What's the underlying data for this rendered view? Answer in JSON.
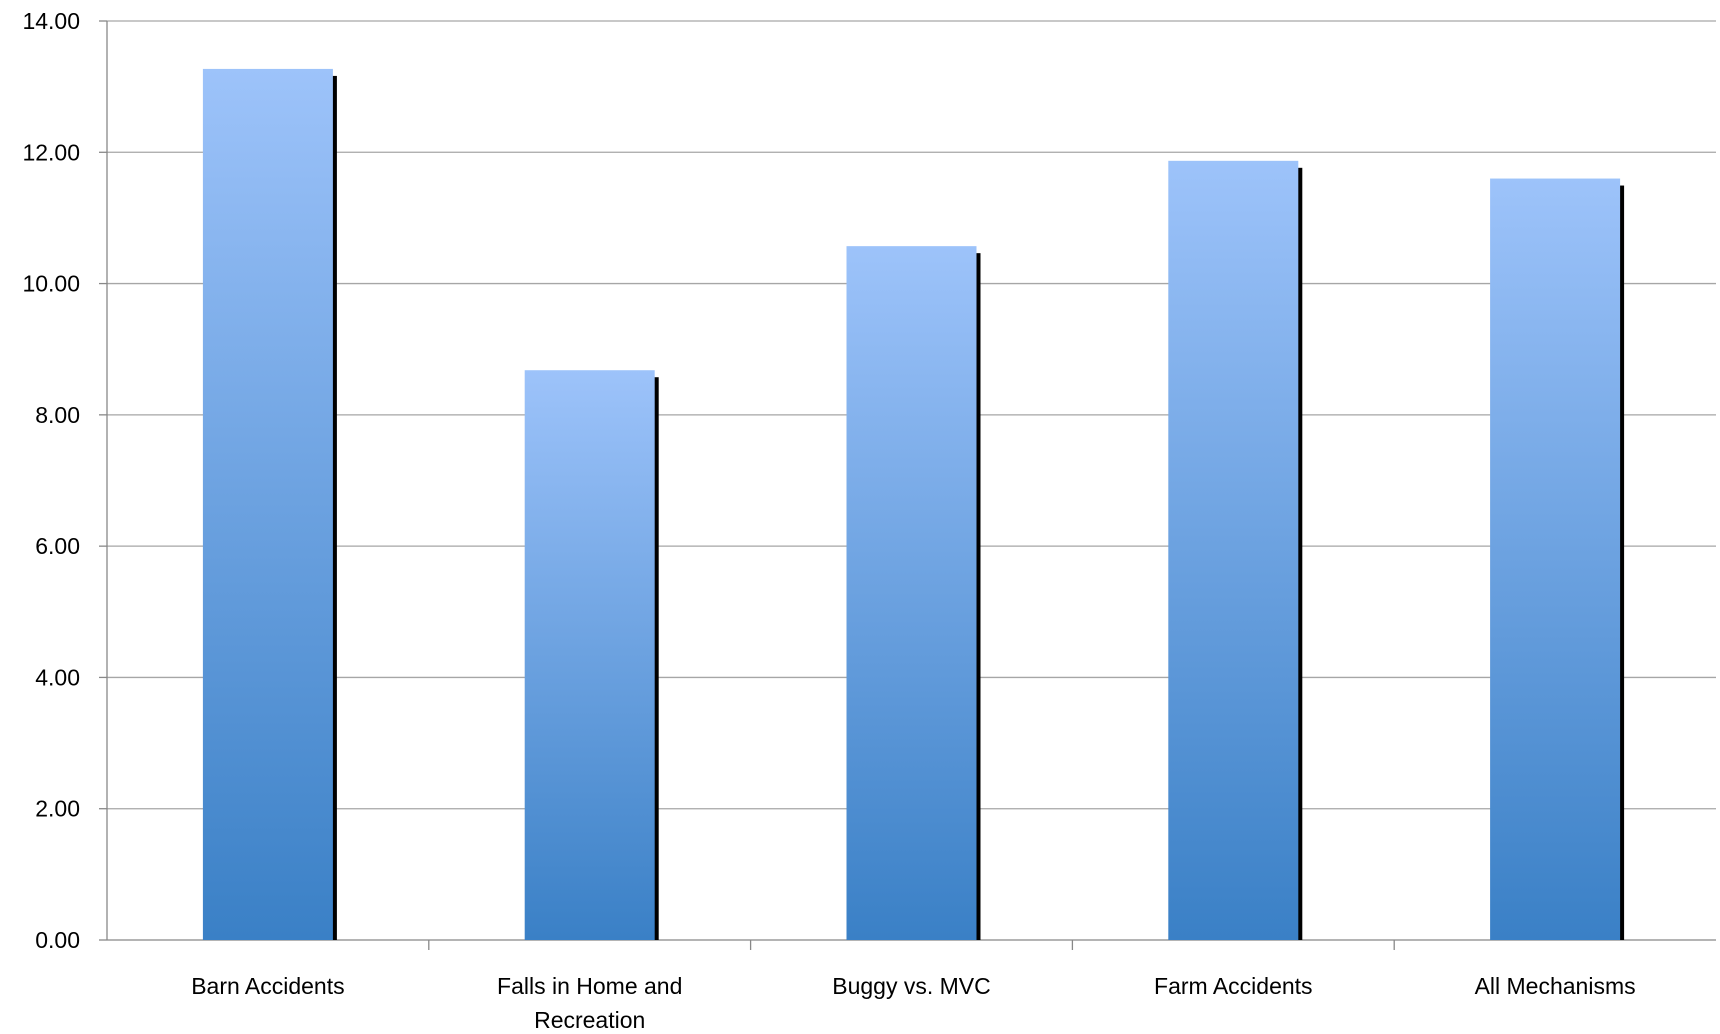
{
  "chart_data": {
    "type": "bar",
    "title": "",
    "xlabel": "",
    "ylabel": "",
    "categories": [
      "Barn Accidents",
      "Falls in Home and Recreation",
      "Buggy vs. MVC",
      "Farm Accidents",
      "All Mechanisms"
    ],
    "category_label_lines": [
      [
        "Barn Accidents"
      ],
      [
        "Falls in Home and",
        "Recreation"
      ],
      [
        "Buggy vs. MVC"
      ],
      [
        "Farm Accidents"
      ],
      [
        "All Mechanisms"
      ]
    ],
    "values": [
      13.27,
      8.68,
      10.57,
      11.87,
      11.6
    ],
    "ylim": [
      0,
      14
    ],
    "yticks": [
      0,
      2,
      4,
      6,
      8,
      10,
      12,
      14
    ],
    "ytick_labels": [
      "0.00",
      "2.00",
      "4.00",
      "6.00",
      "8.00",
      "10.00",
      "12.00",
      "14.00"
    ],
    "grid": true,
    "legend": "none",
    "colors": {
      "bar_top": "#9dc3fa",
      "bar_bottom": "#3a80c6",
      "bar_shadow": "#000000",
      "gridline": "#a6a6a6",
      "axis": "#888888"
    }
  }
}
